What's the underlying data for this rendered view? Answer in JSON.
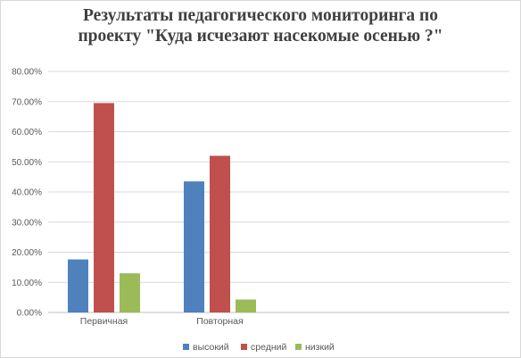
{
  "chart_data": {
    "type": "bar",
    "title_lines": [
      "Результаты педагогического мониторинга по",
      "проекту \"Куда исчезают насекомые осенью ?\""
    ],
    "categories": [
      "Первичная",
      "Повторная"
    ],
    "series": [
      {
        "name": "высокий",
        "values": [
          0.176,
          0.435
        ],
        "color": "#4f81bd"
      },
      {
        "name": "средний",
        "values": [
          0.695,
          0.52
        ],
        "color": "#c0504d"
      },
      {
        "name": "низкий",
        "values": [
          0.13,
          0.043
        ],
        "color": "#9bbb59"
      }
    ],
    "ylim": [
      0,
      0.8
    ],
    "yticks": [
      "0.00%",
      "10.00%",
      "20.00%",
      "30.00%",
      "40.00%",
      "50.00%",
      "60.00%",
      "70.00%",
      "80.00%"
    ],
    "grid": true,
    "legend": "bottom",
    "xlabel": "",
    "ylabel": ""
  }
}
